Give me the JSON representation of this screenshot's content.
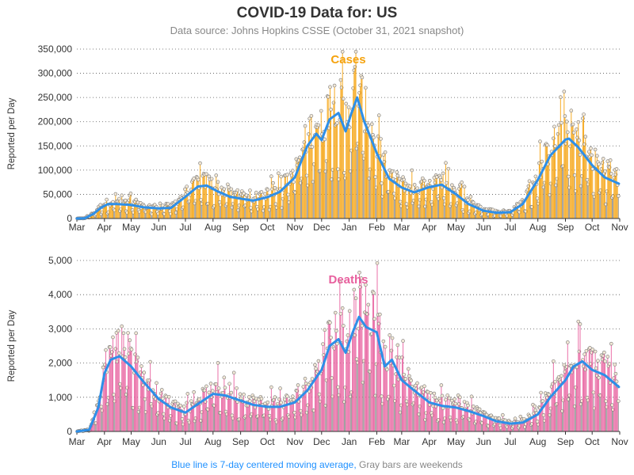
{
  "header": {
    "title": "COVID-19 Data for: US",
    "subtitle": "Data source: Johns Hopkins CSSE (October 31, 2021 snapshot)"
  },
  "footnote": {
    "blue_part": "Blue line is 7-day centered moving average,",
    "gray_part": "Gray bars are weekends"
  },
  "colors": {
    "cases": "#f5a20c",
    "deaths": "#e8609e",
    "moving_average": "#2e8fe8",
    "weekend": "#8a8a8a",
    "grid": "#555555"
  },
  "chart_data": [
    {
      "type": "bar",
      "title": "Cases",
      "ylabel": "Reported per Day",
      "xlabel": "",
      "ylim": [
        0,
        350000
      ],
      "yticks": [
        0,
        50000,
        100000,
        150000,
        200000,
        250000,
        300000,
        350000
      ],
      "ytick_labels": [
        "0",
        "50,000",
        "100,000",
        "150,000",
        "200,000",
        "250,000",
        "300,000",
        "350,000"
      ],
      "xtick_labels": [
        "Mar",
        "Apr",
        "May",
        "Jun",
        "Jul",
        "Aug",
        "Sep",
        "Oct",
        "Nov",
        "Dec",
        "Jan",
        "Feb",
        "Mar",
        "Apr",
        "May",
        "Jun",
        "Jul",
        "Aug",
        "Sep",
        "Oct",
        "Nov"
      ],
      "x_range": [
        "2020-03-01",
        "2021-11-01"
      ],
      "grid": "horizontal dotted",
      "series": [
        {
          "name": "Blue line is 7-day centered moving average",
          "points": [
            [
              "2020-03-01",
              0
            ],
            [
              "2020-03-10",
              500
            ],
            [
              "2020-03-20",
              10000
            ],
            [
              "2020-03-28",
              22000
            ],
            [
              "2020-04-05",
              30000
            ],
            [
              "2020-04-15",
              30000
            ],
            [
              "2020-05-01",
              28000
            ],
            [
              "2020-05-15",
              23000
            ],
            [
              "2020-06-01",
              21000
            ],
            [
              "2020-06-15",
              22000
            ],
            [
              "2020-07-01",
              45000
            ],
            [
              "2020-07-15",
              66000
            ],
            [
              "2020-07-25",
              68000
            ],
            [
              "2020-08-05",
              57000
            ],
            [
              "2020-08-20",
              45000
            ],
            [
              "2020-09-01",
              41000
            ],
            [
              "2020-09-15",
              37000
            ],
            [
              "2020-10-01",
              44000
            ],
            [
              "2020-10-15",
              55000
            ],
            [
              "2020-11-01",
              85000
            ],
            [
              "2020-11-15",
              150000
            ],
            [
              "2020-11-25",
              175000
            ],
            [
              "2020-12-01",
              162000
            ],
            [
              "2020-12-10",
              205000
            ],
            [
              "2020-12-20",
              218000
            ],
            [
              "2020-12-28",
              180000
            ],
            [
              "2021-01-03",
              215000
            ],
            [
              "2021-01-10",
              250000
            ],
            [
              "2021-01-18",
              200000
            ],
            [
              "2021-02-01",
              135000
            ],
            [
              "2021-02-15",
              82000
            ],
            [
              "2021-03-01",
              64000
            ],
            [
              "2021-03-15",
              54000
            ],
            [
              "2021-04-01",
              65000
            ],
            [
              "2021-04-15",
              70000
            ],
            [
              "2021-05-01",
              50000
            ],
            [
              "2021-05-15",
              30000
            ],
            [
              "2021-06-01",
              16000
            ],
            [
              "2021-06-15",
              12000
            ],
            [
              "2021-07-01",
              13000
            ],
            [
              "2021-07-15",
              30000
            ],
            [
              "2021-08-01",
              80000
            ],
            [
              "2021-08-15",
              130000
            ],
            [
              "2021-09-01",
              163000
            ],
            [
              "2021-09-05",
              165000
            ],
            [
              "2021-09-15",
              148000
            ],
            [
              "2021-10-01",
              110000
            ],
            [
              "2021-10-15",
              85000
            ],
            [
              "2021-10-31",
              72000
            ]
          ]
        }
      ]
    },
    {
      "type": "bar",
      "title": "Deaths",
      "ylabel": "Reported per Day",
      "xlabel": "",
      "ylim": [
        0,
        5000
      ],
      "yticks": [
        0,
        1000,
        2000,
        3000,
        4000,
        5000
      ],
      "ytick_labels": [
        "0",
        "1,000",
        "2,000",
        "3,000",
        "4,000",
        "5,000"
      ],
      "xtick_labels": [
        "Mar",
        "Apr",
        "May",
        "Jun",
        "Jul",
        "Aug",
        "Sep",
        "Oct",
        "Nov",
        "Dec",
        "Jan",
        "Feb",
        "Mar",
        "Apr",
        "May",
        "Jun",
        "Jul",
        "Aug",
        "Sep",
        "Oct",
        "Nov"
      ],
      "x_range": [
        "2020-03-01",
        "2021-11-01"
      ],
      "grid": "horizontal dotted",
      "series": [
        {
          "name": "Blue line is 7-day centered moving average",
          "points": [
            [
              "2020-03-01",
              0
            ],
            [
              "2020-03-15",
              50
            ],
            [
              "2020-03-25",
              700
            ],
            [
              "2020-04-01",
              1700
            ],
            [
              "2020-04-08",
              2100
            ],
            [
              "2020-04-18",
              2200
            ],
            [
              "2020-05-01",
              1900
            ],
            [
              "2020-05-15",
              1450
            ],
            [
              "2020-06-01",
              950
            ],
            [
              "2020-06-15",
              700
            ],
            [
              "2020-07-01",
              550
            ],
            [
              "2020-07-15",
              800
            ],
            [
              "2020-08-01",
              1100
            ],
            [
              "2020-08-15",
              1050
            ],
            [
              "2020-09-01",
              900
            ],
            [
              "2020-09-15",
              780
            ],
            [
              "2020-10-01",
              720
            ],
            [
              "2020-10-15",
              720
            ],
            [
              "2020-11-01",
              850
            ],
            [
              "2020-11-15",
              1200
            ],
            [
              "2020-12-01",
              1800
            ],
            [
              "2020-12-10",
              2500
            ],
            [
              "2020-12-20",
              2700
            ],
            [
              "2020-12-28",
              2300
            ],
            [
              "2021-01-05",
              2900
            ],
            [
              "2021-01-12",
              3350
            ],
            [
              "2021-01-20",
              3050
            ],
            [
              "2021-02-01",
              2900
            ],
            [
              "2021-02-10",
              1900
            ],
            [
              "2021-02-18",
              2100
            ],
            [
              "2021-03-01",
              1500
            ],
            [
              "2021-03-15",
              1200
            ],
            [
              "2021-04-01",
              850
            ],
            [
              "2021-04-15",
              750
            ],
            [
              "2021-05-01",
              700
            ],
            [
              "2021-05-15",
              600
            ],
            [
              "2021-06-01",
              450
            ],
            [
              "2021-06-15",
              300
            ],
            [
              "2021-07-01",
              230
            ],
            [
              "2021-07-15",
              260
            ],
            [
              "2021-08-01",
              500
            ],
            [
              "2021-08-15",
              1000
            ],
            [
              "2021-09-01",
              1500
            ],
            [
              "2021-09-10",
              1900
            ],
            [
              "2021-09-20",
              2050
            ],
            [
              "2021-10-01",
              1800
            ],
            [
              "2021-10-15",
              1650
            ],
            [
              "2021-10-31",
              1300
            ]
          ]
        }
      ]
    }
  ]
}
